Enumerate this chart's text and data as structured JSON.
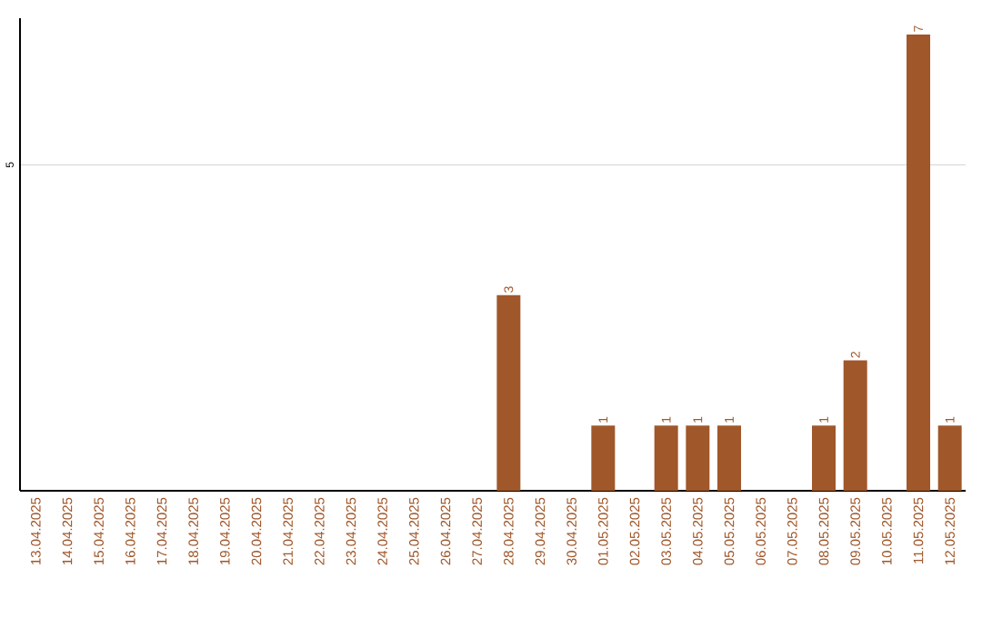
{
  "chart_data": {
    "type": "bar",
    "categories": [
      "13.04.2025",
      "14.04.2025",
      "15.04.2025",
      "16.04.2025",
      "17.04.2025",
      "18.04.2025",
      "19.04.2025",
      "20.04.2025",
      "21.04.2025",
      "22.04.2025",
      "23.04.2025",
      "24.04.2025",
      "25.04.2025",
      "26.04.2025",
      "27.04.2025",
      "28.04.2025",
      "29.04.2025",
      "30.04.2025",
      "01.05.2025",
      "02.05.2025",
      "03.05.2025",
      "04.05.2025",
      "05.05.2025",
      "06.05.2025",
      "07.05.2025",
      "08.05.2025",
      "09.05.2025",
      "10.05.2025",
      "11.05.2025",
      "12.05.2025"
    ],
    "values": [
      null,
      null,
      null,
      null,
      null,
      null,
      null,
      null,
      null,
      null,
      null,
      null,
      null,
      null,
      null,
      3,
      null,
      null,
      1,
      null,
      1,
      1,
      1,
      null,
      null,
      1,
      2,
      null,
      7,
      1
    ],
    "data_labels": true,
    "color": "#a0572a",
    "ylim": [
      0,
      7.25
    ],
    "yticks": [
      5
    ],
    "grid": "y"
  }
}
